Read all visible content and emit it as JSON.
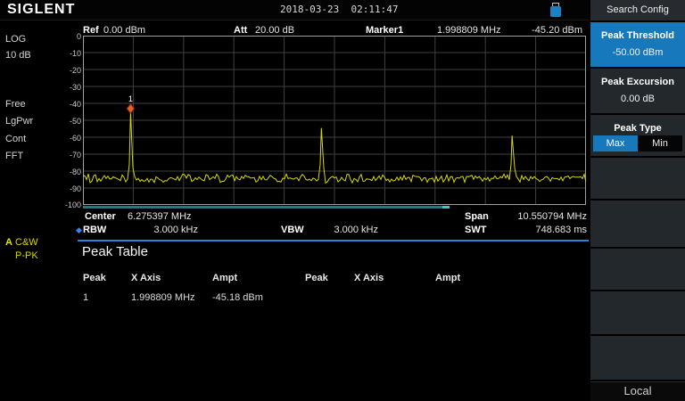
{
  "top_bar": {
    "logo": "SIGLENT",
    "datetime": "2018-03-23  02:11:47",
    "usb_icon": "usb-drive-icon"
  },
  "left_panel": {
    "items": [
      "LOG",
      "10 dB",
      "Free",
      "LgPwr",
      "Cont",
      "FFT"
    ],
    "trace_prefix": "A",
    "trace_mode": "C&W",
    "detector": "P-PK"
  },
  "graph_header": {
    "ref_label": "Ref",
    "ref_value": "0.00 dBm",
    "att_label": "Att",
    "att_value": "20.00 dB",
    "marker_label": "Marker1",
    "marker_freq": "1.998809 MHz",
    "marker_ampl": "-45.20 dBm"
  },
  "graph": {
    "y_labels": [
      "0",
      "-10",
      "-20",
      "-30",
      "-40",
      "-50",
      "-60",
      "-70",
      "-80",
      "-90",
      "-100"
    ]
  },
  "footer": {
    "center_label": "Center",
    "center_value": "6.275397 MHz",
    "span_label": "Span",
    "span_value": "10.550794 MHz",
    "rbw_label": "RBW",
    "rbw_value": "3.000 kHz",
    "vbw_label": "VBW",
    "vbw_value": "3.000 kHz",
    "swt_label": "SWT",
    "swt_value": "748.683 ms",
    "rbw_marker": "◆"
  },
  "peak_table": {
    "title": "Peak Table",
    "headers": [
      "Peak",
      "X Axis",
      "Ampt",
      "Peak",
      "X Axis",
      "Ampt"
    ],
    "rows": [
      {
        "peak": "1",
        "x_axis": "1.998809 MHz",
        "ampt": "-45.18 dBm"
      }
    ]
  },
  "right_panel": {
    "header": "Search Config",
    "peak_threshold": {
      "label": "Peak Threshold",
      "value": "-50.00 dBm"
    },
    "peak_excursion": {
      "label": "Peak Excursion",
      "value": "0.00 dB"
    },
    "peak_type": {
      "label": "Peak Type",
      "options": [
        "Max",
        "Min"
      ],
      "selected": "Max"
    },
    "local_label": "Local"
  },
  "colors": {
    "accent_blue": "#1878bc",
    "trace_yellow": "#d8d800",
    "sweep_teal": "#16827e",
    "sweep_teal_cap": "#48c4bf",
    "separator_blue": "#2f80d9",
    "marker_orange": "#e8611c",
    "marker_outline": "#a83418",
    "grid_line": "#404040",
    "grid_border": "#a0a0a0"
  },
  "chart_data": {
    "type": "line",
    "title": "Spectrum trace A (P-PK)",
    "x_start_mhz": 1.0,
    "x_stop_mhz": 11.550794,
    "x_center_mhz": 6.275397,
    "x_span_mhz": 10.550794,
    "y_unit": "dBm",
    "ylim": [
      -100,
      0
    ],
    "y_div_db": 10,
    "x_divisions": 10,
    "ref_level_dbm": 0.0,
    "attenuation_db": 20.0,
    "noise_floor_dbm": -84.5,
    "noise_peak_to_peak_db": 6,
    "peaks": [
      {
        "freq_mhz": 1.998809,
        "ampl_dbm": -45.2,
        "marker": "1"
      },
      {
        "freq_mhz": 6.0,
        "ampl_dbm": -54.5
      },
      {
        "freq_mhz": 10.0,
        "ampl_dbm": -59.0
      }
    ],
    "sweep_progress_fraction": 0.727
  }
}
